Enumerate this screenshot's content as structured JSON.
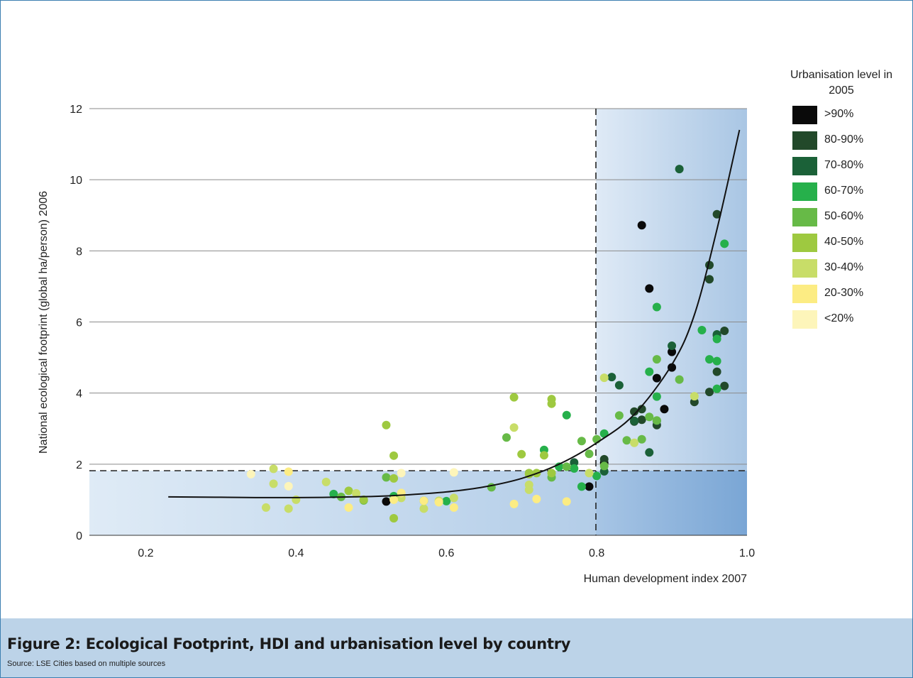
{
  "chart_data": {
    "type": "scatter",
    "xlabel": "Human development index 2007",
    "ylabel": "National ecological footprint (global ha/person) 2006",
    "xlim": [
      0.125,
      1.0
    ],
    "ylim": [
      0,
      12
    ],
    "x_ticks": [
      "0.2",
      "0.4",
      "0.6",
      "0.8",
      "1.0"
    ],
    "y_ticks": [
      "0",
      "2",
      "4",
      "6",
      "8",
      "10",
      "12"
    ],
    "grid": "horizontal",
    "legend_position": "right",
    "reference_lines": {
      "hdi_threshold": 0.8,
      "footprint_threshold": 1.8
    },
    "legend": {
      "title": "Urbanisation level in 2005",
      "items": [
        {
          "label": ">90%",
          "color": "#0a0a0a"
        },
        {
          "label": "80-90%",
          "color": "#22492a"
        },
        {
          "label": "70-80%",
          "color": "#1b6138"
        },
        {
          "label": "60-70%",
          "color": "#26b04b"
        },
        {
          "label": "50-60%",
          "color": "#67ba47"
        },
        {
          "label": "40-50%",
          "color": "#9ec940"
        },
        {
          "label": "30-40%",
          "color": "#c8dd68"
        },
        {
          "label": "20-30%",
          "color": "#fcec83"
        },
        {
          "label": "<20%",
          "color": "#fdf5ba"
        }
      ]
    },
    "trend_line": [
      [
        0.23,
        1.08
      ],
      [
        0.3,
        1.07
      ],
      [
        0.4,
        1.06
      ],
      [
        0.5,
        1.09
      ],
      [
        0.55,
        1.14
      ],
      [
        0.6,
        1.22
      ],
      [
        0.65,
        1.36
      ],
      [
        0.7,
        1.6
      ],
      [
        0.75,
        2.0
      ],
      [
        0.8,
        2.6
      ],
      [
        0.85,
        3.4
      ],
      [
        0.9,
        4.8
      ],
      [
        0.93,
        6.2
      ],
      [
        0.96,
        8.6
      ],
      [
        0.99,
        11.4
      ]
    ],
    "series": [
      {
        "name": ">90%",
        "points": [
          [
            0.52,
            0.95
          ],
          [
            0.79,
            1.37
          ],
          [
            0.81,
            2.04
          ],
          [
            0.86,
            8.72
          ],
          [
            0.87,
            6.94
          ],
          [
            0.88,
            4.42
          ],
          [
            0.89,
            3.55
          ],
          [
            0.9,
            5.16
          ],
          [
            0.9,
            4.72
          ]
        ]
      },
      {
        "name": "80-90%",
        "points": [
          [
            0.81,
            2.14
          ],
          [
            0.85,
            3.48
          ],
          [
            0.86,
            3.55
          ],
          [
            0.85,
            3.2
          ],
          [
            0.86,
            3.25
          ],
          [
            0.88,
            3.1
          ],
          [
            0.93,
            3.75
          ],
          [
            0.95,
            4.03
          ],
          [
            0.95,
            7.6
          ],
          [
            0.95,
            7.2
          ],
          [
            0.96,
            9.03
          ],
          [
            0.96,
            5.62
          ],
          [
            0.96,
            4.6
          ],
          [
            0.97,
            5.75
          ],
          [
            0.97,
            4.2
          ]
        ]
      },
      {
        "name": "70-80%",
        "points": [
          [
            0.77,
            2.05
          ],
          [
            0.81,
            1.8
          ],
          [
            0.82,
            4.45
          ],
          [
            0.83,
            4.22
          ],
          [
            0.85,
            3.22
          ],
          [
            0.88,
            3.22
          ],
          [
            0.87,
            2.33
          ],
          [
            0.9,
            5.33
          ],
          [
            0.91,
            10.3
          ],
          [
            0.96,
            5.65
          ]
        ]
      },
      {
        "name": "60-70%",
        "points": [
          [
            0.45,
            1.16
          ],
          [
            0.53,
            1.1
          ],
          [
            0.6,
            0.96
          ],
          [
            0.57,
            0.97
          ],
          [
            0.73,
            2.4
          ],
          [
            0.75,
            1.93
          ],
          [
            0.76,
            3.38
          ],
          [
            0.77,
            1.88
          ],
          [
            0.78,
            1.37
          ],
          [
            0.8,
            1.67
          ],
          [
            0.81,
            2.86
          ],
          [
            0.87,
            4.6
          ],
          [
            0.88,
            3.9
          ],
          [
            0.88,
            6.42
          ],
          [
            0.94,
            5.77
          ],
          [
            0.95,
            4.95
          ],
          [
            0.96,
            4.9
          ],
          [
            0.96,
            5.52
          ],
          [
            0.96,
            4.12
          ],
          [
            0.97,
            8.2
          ]
        ]
      },
      {
        "name": "50-60%",
        "points": [
          [
            0.46,
            1.08
          ],
          [
            0.49,
            0.98
          ],
          [
            0.52,
            1.63
          ],
          [
            0.66,
            1.35
          ],
          [
            0.68,
            2.75
          ],
          [
            0.74,
            1.63
          ],
          [
            0.76,
            1.93
          ],
          [
            0.78,
            2.65
          ],
          [
            0.79,
            2.29
          ],
          [
            0.8,
            2.7
          ],
          [
            0.81,
            1.95
          ],
          [
            0.83,
            3.37
          ],
          [
            0.84,
            2.67
          ],
          [
            0.86,
            2.7
          ],
          [
            0.87,
            3.33
          ],
          [
            0.88,
            3.23
          ],
          [
            0.88,
            4.95
          ],
          [
            0.91,
            4.38
          ]
        ]
      },
      {
        "name": "40-50%",
        "points": [
          [
            0.47,
            1.25
          ],
          [
            0.49,
            1.0
          ],
          [
            0.52,
            3.1
          ],
          [
            0.53,
            1.6
          ],
          [
            0.53,
            2.24
          ],
          [
            0.53,
            0.48
          ],
          [
            0.69,
            3.88
          ],
          [
            0.7,
            2.28
          ],
          [
            0.71,
            1.75
          ],
          [
            0.71,
            1.72
          ],
          [
            0.72,
            1.75
          ],
          [
            0.73,
            2.25
          ],
          [
            0.74,
            3.83
          ],
          [
            0.74,
            3.7
          ],
          [
            0.74,
            1.75
          ]
        ]
      },
      {
        "name": "30-40%",
        "points": [
          [
            0.36,
            0.78
          ],
          [
            0.37,
            1.45
          ],
          [
            0.37,
            1.87
          ],
          [
            0.39,
            0.75
          ],
          [
            0.4,
            1.0
          ],
          [
            0.44,
            1.5
          ],
          [
            0.48,
            1.18
          ],
          [
            0.54,
            1.05
          ],
          [
            0.57,
            0.75
          ],
          [
            0.59,
            0.97
          ],
          [
            0.61,
            1.05
          ],
          [
            0.69,
            3.03
          ],
          [
            0.71,
            1.42
          ],
          [
            0.71,
            1.28
          ],
          [
            0.79,
            1.75
          ],
          [
            0.81,
            4.43
          ],
          [
            0.85,
            2.6
          ],
          [
            0.93,
            3.91
          ]
        ]
      },
      {
        "name": "20-30%",
        "points": [
          [
            0.39,
            1.79
          ],
          [
            0.47,
            0.78
          ],
          [
            0.53,
            1.0
          ],
          [
            0.54,
            1.19
          ],
          [
            0.57,
            0.97
          ],
          [
            0.59,
            0.93
          ],
          [
            0.61,
            0.78
          ],
          [
            0.69,
            0.88
          ],
          [
            0.72,
            1.02
          ],
          [
            0.76,
            0.95
          ]
        ]
      },
      {
        "name": "<20%",
        "points": [
          [
            0.34,
            1.72
          ],
          [
            0.39,
            1.38
          ],
          [
            0.54,
            1.75
          ],
          [
            0.61,
            1.77
          ]
        ]
      }
    ]
  },
  "caption": {
    "title": "Figure 2: Ecological Footprint, HDI and urbanisation level by country",
    "source": "Source: LSE Cities based on multiple sources"
  }
}
